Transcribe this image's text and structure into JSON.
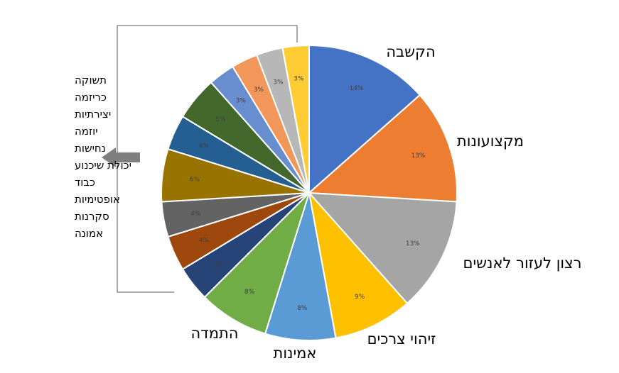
{
  "chart_data": {
    "type": "pie",
    "title": "",
    "slices": [
      {
        "label": "הקשבה",
        "value": 14,
        "data_label": "14%",
        "color": "#4472C4"
      },
      {
        "label": "מקצועונות",
        "value": 13,
        "data_label": "13%",
        "color": "#ED7D31"
      },
      {
        "label": "רצון לעזור לאנשים",
        "value": 13,
        "data_label": "13%",
        "color": "#A5A5A5"
      },
      {
        "label": "זיהוי צרכים",
        "value": 9,
        "data_label": "9%",
        "color": "#FFC000"
      },
      {
        "label": "אמינות",
        "value": 8,
        "data_label": "8%",
        "color": "#5B9BD5"
      },
      {
        "label": "התמדה",
        "value": 8,
        "data_label": "8%",
        "color": "#70AD47"
      },
      {
        "label": "",
        "value": 4,
        "data_label": "4%",
        "color": "#264478"
      },
      {
        "label": "",
        "value": 4,
        "data_label": "4%",
        "color": "#9E480E"
      },
      {
        "label": "",
        "value": 4,
        "data_label": "4%",
        "color": "#636363"
      },
      {
        "label": "",
        "value": 6,
        "data_label": "6%",
        "color": "#997300"
      },
      {
        "label": "",
        "value": 4,
        "data_label": "4%",
        "color": "#255E91"
      },
      {
        "label": "",
        "value": 5,
        "data_label": "5%",
        "color": "#43682B"
      },
      {
        "label": "",
        "value": 3,
        "data_label": "3%",
        "color": "#698ED0"
      },
      {
        "label": "",
        "value": 3,
        "data_label": "3%",
        "color": "#F1975A"
      },
      {
        "label": "",
        "value": 3,
        "data_label": "3%",
        "color": "#B7B7B7"
      },
      {
        "label": "",
        "value": 3,
        "data_label": "3%",
        "color": "#FFCD33"
      }
    ],
    "small_slices_list": [
      "תשוקה",
      "כריזמה",
      "יצירתיות",
      "יוזמה",
      "נחישות",
      "יכולת שיכנוע",
      "כבוד",
      "אופטימיות",
      "סקרנות",
      "אמונה"
    ],
    "arrow_color": "#7F7F7F",
    "bracket_color": "#595959"
  }
}
